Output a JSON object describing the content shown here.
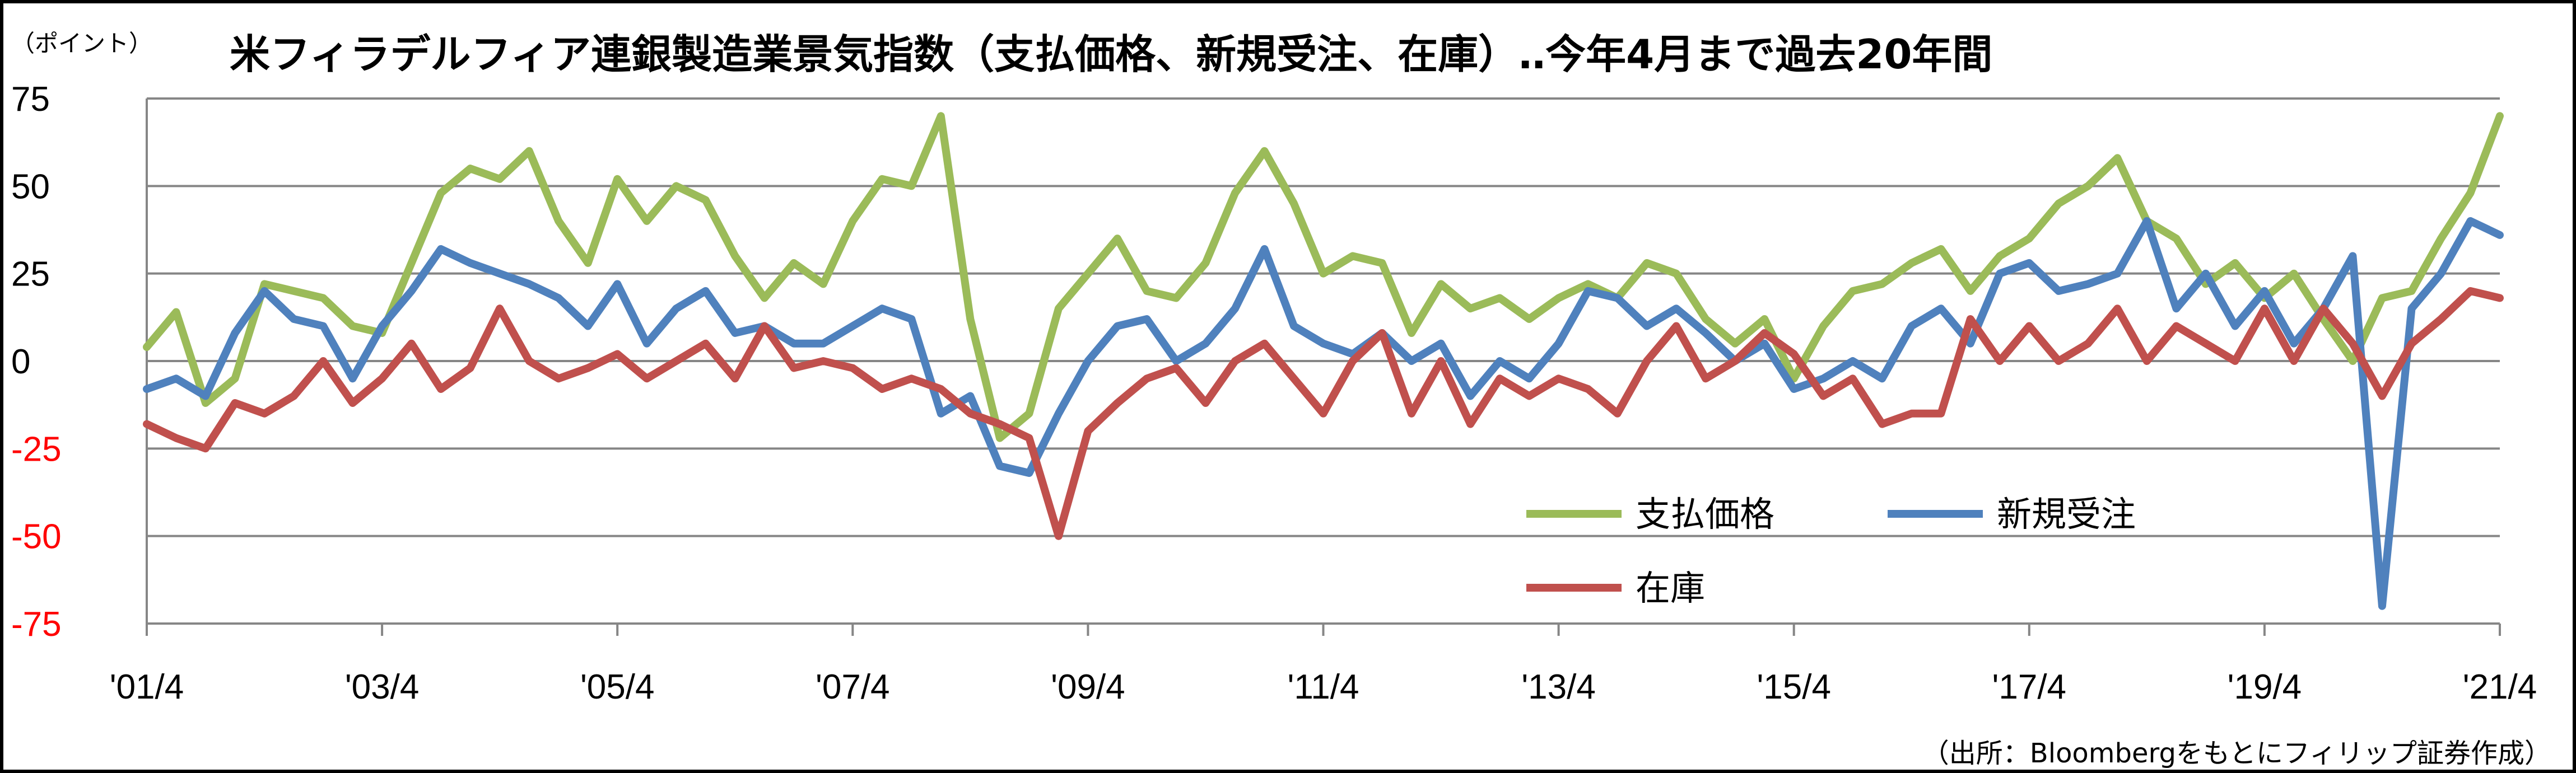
{
  "chart_data": {
    "type": "line",
    "title": "米フィラデルフィア連銀製造業景気指数（支払価格、新規受注、在庫）‥今年4月まで過去20年間",
    "unit_label": "（ポイント）",
    "source": "（出所：Bloombergをもとにフィリップ証券作成）",
    "ylim": [
      -75,
      75
    ],
    "yticks": [
      "75",
      "50",
      "25",
      "0",
      "-25",
      "-50",
      "-75"
    ],
    "ytick_values": [
      75,
      50,
      25,
      0,
      -25,
      -50,
      -75
    ],
    "negative_tick_color": "#ff0000",
    "positive_tick_color": "#000000",
    "xlim": [
      2001.25,
      2021.25
    ],
    "xticks": [
      "'01/4",
      "'03/4",
      "'05/4",
      "'07/4",
      "'09/4",
      "'11/4",
      "'13/4",
      "'15/4",
      "'17/4",
      "'19/4",
      "'21/4"
    ],
    "grid": true,
    "legend_placement": "bottom-right",
    "series": [
      {
        "name": "支払価格",
        "color": "#9bbb59",
        "x": [
          2001.25,
          2001.5,
          2001.75,
          2002.0,
          2002.25,
          2002.5,
          2002.75,
          2003.0,
          2003.25,
          2003.5,
          2003.75,
          2004.0,
          2004.25,
          2004.5,
          2004.75,
          2005.0,
          2005.25,
          2005.5,
          2005.75,
          2006.0,
          2006.25,
          2006.5,
          2006.75,
          2007.0,
          2007.25,
          2007.5,
          2007.75,
          2008.0,
          2008.25,
          2008.5,
          2008.75,
          2009.0,
          2009.25,
          2009.5,
          2009.75,
          2010.0,
          2010.25,
          2010.5,
          2010.75,
          2011.0,
          2011.25,
          2011.5,
          2011.75,
          2012.0,
          2012.25,
          2012.5,
          2012.75,
          2013.0,
          2013.25,
          2013.5,
          2013.75,
          2014.0,
          2014.25,
          2014.5,
          2014.75,
          2015.0,
          2015.25,
          2015.5,
          2015.75,
          2016.0,
          2016.25,
          2016.5,
          2016.75,
          2017.0,
          2017.25,
          2017.5,
          2017.75,
          2018.0,
          2018.25,
          2018.5,
          2018.75,
          2019.0,
          2019.25,
          2019.5,
          2019.75,
          2020.0,
          2020.25,
          2020.5,
          2020.75,
          2021.0,
          2021.25
        ],
        "values": [
          4,
          14,
          -12,
          -5,
          22,
          20,
          18,
          10,
          8,
          28,
          48,
          55,
          52,
          60,
          40,
          28,
          52,
          40,
          50,
          46,
          30,
          18,
          28,
          22,
          40,
          52,
          50,
          70,
          12,
          -22,
          -15,
          15,
          25,
          35,
          20,
          18,
          28,
          48,
          60,
          45,
          25,
          30,
          28,
          8,
          22,
          15,
          18,
          12,
          18,
          22,
          18,
          28,
          25,
          12,
          5,
          12,
          -5,
          10,
          20,
          22,
          28,
          32,
          20,
          30,
          35,
          45,
          50,
          58,
          40,
          35,
          22,
          28,
          18,
          25,
          12,
          0,
          18,
          20,
          35,
          48,
          70
        ]
      },
      {
        "name": "新規受注",
        "color": "#4f81bd",
        "x": [
          2001.25,
          2001.5,
          2001.75,
          2002.0,
          2002.25,
          2002.5,
          2002.75,
          2003.0,
          2003.25,
          2003.5,
          2003.75,
          2004.0,
          2004.25,
          2004.5,
          2004.75,
          2005.0,
          2005.25,
          2005.5,
          2005.75,
          2006.0,
          2006.25,
          2006.5,
          2006.75,
          2007.0,
          2007.25,
          2007.5,
          2007.75,
          2008.0,
          2008.25,
          2008.5,
          2008.75,
          2009.0,
          2009.25,
          2009.5,
          2009.75,
          2010.0,
          2010.25,
          2010.5,
          2010.75,
          2011.0,
          2011.25,
          2011.5,
          2011.75,
          2012.0,
          2012.25,
          2012.5,
          2012.75,
          2013.0,
          2013.25,
          2013.5,
          2013.75,
          2014.0,
          2014.25,
          2014.5,
          2014.75,
          2015.0,
          2015.25,
          2015.5,
          2015.75,
          2016.0,
          2016.25,
          2016.5,
          2016.75,
          2017.0,
          2017.25,
          2017.5,
          2017.75,
          2018.0,
          2018.25,
          2018.5,
          2018.75,
          2019.0,
          2019.25,
          2019.5,
          2019.75,
          2020.0,
          2020.25,
          2020.5,
          2020.75,
          2021.0,
          2021.25
        ],
        "values": [
          -8,
          -5,
          -10,
          8,
          20,
          12,
          10,
          -5,
          10,
          20,
          32,
          28,
          25,
          22,
          18,
          10,
          22,
          5,
          15,
          20,
          8,
          10,
          5,
          5,
          10,
          15,
          12,
          -15,
          -10,
          -30,
          -32,
          -15,
          0,
          10,
          12,
          0,
          5,
          15,
          32,
          10,
          5,
          2,
          8,
          0,
          5,
          -10,
          0,
          -5,
          5,
          20,
          18,
          10,
          15,
          8,
          0,
          5,
          -8,
          -5,
          0,
          -5,
          10,
          15,
          5,
          25,
          28,
          20,
          22,
          25,
          40,
          15,
          25,
          10,
          20,
          5,
          15,
          30,
          -70,
          15,
          25,
          40,
          36
        ]
      },
      {
        "name": "在庫",
        "color": "#c0504d",
        "x": [
          2001.25,
          2001.5,
          2001.75,
          2002.0,
          2002.25,
          2002.5,
          2002.75,
          2003.0,
          2003.25,
          2003.5,
          2003.75,
          2004.0,
          2004.25,
          2004.5,
          2004.75,
          2005.0,
          2005.25,
          2005.5,
          2005.75,
          2006.0,
          2006.25,
          2006.5,
          2006.75,
          2007.0,
          2007.25,
          2007.5,
          2007.75,
          2008.0,
          2008.25,
          2008.5,
          2008.75,
          2009.0,
          2009.25,
          2009.5,
          2009.75,
          2010.0,
          2010.25,
          2010.5,
          2010.75,
          2011.0,
          2011.25,
          2011.5,
          2011.75,
          2012.0,
          2012.25,
          2012.5,
          2012.75,
          2013.0,
          2013.25,
          2013.5,
          2013.75,
          2014.0,
          2014.25,
          2014.5,
          2014.75,
          2015.0,
          2015.25,
          2015.5,
          2015.75,
          2016.0,
          2016.25,
          2016.5,
          2016.75,
          2017.0,
          2017.25,
          2017.5,
          2017.75,
          2018.0,
          2018.25,
          2018.5,
          2018.75,
          2019.0,
          2019.25,
          2019.5,
          2019.75,
          2020.0,
          2020.25,
          2020.5,
          2020.75,
          2021.0,
          2021.25
        ],
        "values": [
          -18,
          -22,
          -25,
          -12,
          -15,
          -10,
          0,
          -12,
          -5,
          5,
          -8,
          -2,
          15,
          0,
          -5,
          -2,
          2,
          -5,
          0,
          5,
          -5,
          10,
          -2,
          0,
          -2,
          -8,
          -5,
          -8,
          -15,
          -18,
          -22,
          -50,
          -20,
          -12,
          -5,
          -2,
          -12,
          0,
          5,
          -5,
          -15,
          0,
          8,
          -15,
          0,
          -18,
          -5,
          -10,
          -5,
          -8,
          -15,
          0,
          10,
          -5,
          0,
          8,
          2,
          -10,
          -5,
          -18,
          -15,
          -15,
          12,
          0,
          10,
          0,
          5,
          15,
          0,
          10,
          5,
          0,
          15,
          0,
          15,
          5,
          -10,
          5,
          12,
          20,
          18
        ]
      }
    ]
  }
}
